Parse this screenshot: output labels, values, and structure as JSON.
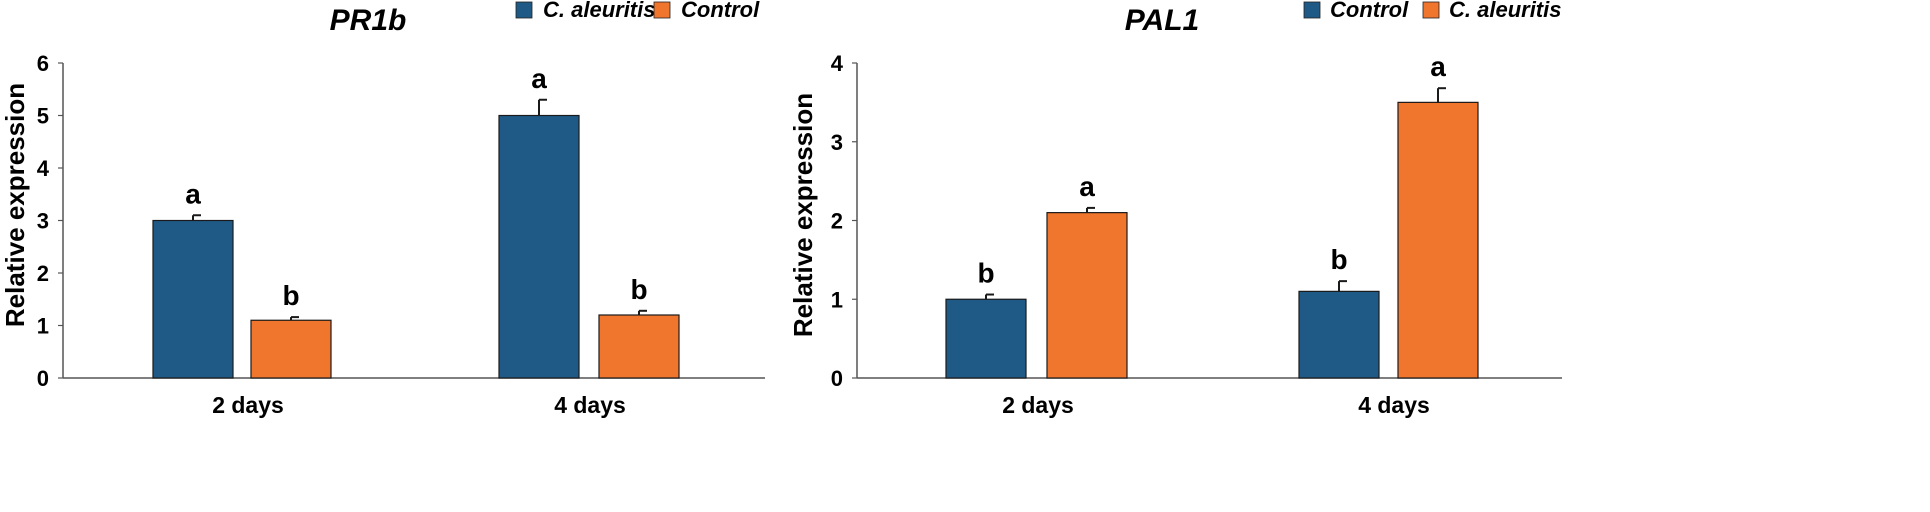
{
  "chart_data": [
    {
      "type": "bar",
      "title": "PR1b",
      "categories": [
        "2 days",
        "4 days"
      ],
      "series": [
        {
          "name": "C. aleuritis",
          "color": "#1f5a87",
          "values": [
            3.0,
            5.0
          ],
          "errors": [
            0.1,
            0.3
          ],
          "letters": [
            "a",
            "a"
          ]
        },
        {
          "name": "Control",
          "color": "#f0752d",
          "values": [
            1.1,
            1.2
          ],
          "errors": [
            0.06,
            0.08
          ],
          "letters": [
            "b",
            "b"
          ]
        }
      ],
      "ylabel": "Relative expression",
      "xlabel": "",
      "ylim": [
        0,
        6
      ],
      "yticks": [
        "0",
        "1",
        "2",
        "3",
        "4",
        "5",
        "6"
      ],
      "grid": false,
      "legend_position": "top"
    },
    {
      "type": "bar",
      "title": "PAL1",
      "categories": [
        "2 days",
        "4 days"
      ],
      "series": [
        {
          "name": "Control",
          "color": "#1f5a87",
          "values": [
            1.0,
            1.1
          ],
          "errors": [
            0.06,
            0.13
          ],
          "letters": [
            "b",
            "b"
          ]
        },
        {
          "name": "C. aleuritis",
          "color": "#f0752d",
          "values": [
            2.1,
            3.5
          ],
          "errors": [
            0.06,
            0.18
          ],
          "letters": [
            "a",
            "a"
          ]
        }
      ],
      "ylabel": "Relative expression",
      "xlabel": "",
      "ylim": [
        0,
        4
      ],
      "yticks": [
        "0",
        "1",
        "2",
        "3",
        "4"
      ],
      "grid": false,
      "legend_position": "top"
    }
  ]
}
